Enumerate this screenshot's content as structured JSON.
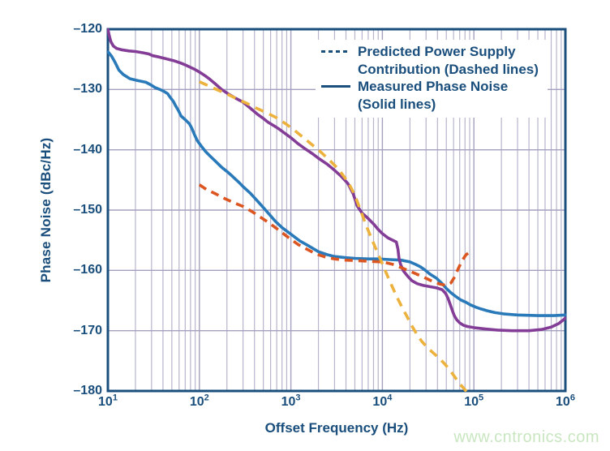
{
  "chart": {
    "ylabel": "Phase Noise (dBc/Hz)",
    "xlabel": "Offset Frequency (Hz)"
  },
  "legend": {
    "items": [
      {
        "style": "dashed",
        "line1": "Predicted Power Supply",
        "line2": "Contribution (Dashed lines)"
      },
      {
        "style": "solid",
        "line1": "Measured Phase Noise",
        "line2": "(Solid lines)"
      }
    ]
  },
  "watermark": "www.cntronics.com",
  "palette": {
    "navy": "#1a4e7c",
    "grid_minor": "#b6b5cc",
    "grid_major": "#a3a1bf",
    "watermark_green": "#c9e6c1"
  },
  "chart_data": {
    "type": "line",
    "title": "",
    "xlabel": "Offset Frequency (Hz)",
    "ylabel": "Phase Noise (dBc/Hz)",
    "x_scale": "log",
    "xlim": [
      10,
      1000000
    ],
    "ylim": [
      -180,
      -120
    ],
    "x_tick_exponents": [
      1,
      2,
      3,
      4,
      5,
      6
    ],
    "y_ticks": [
      -120,
      -130,
      -140,
      -150,
      -160,
      -170,
      -180
    ],
    "grid": true,
    "legend_position": "top-right-inside",
    "series": [
      {
        "name": "Measured Phase Noise (blue)",
        "role": "measured",
        "color": "#2a7aba",
        "line_style": "solid",
        "points": [
          [
            10.1,
            -123.8
          ],
          [
            11,
            -124.5
          ],
          [
            12,
            -125.5
          ],
          [
            13.2,
            -126.8
          ],
          [
            14.7,
            -127.5
          ],
          [
            17.4,
            -128.2
          ],
          [
            21,
            -128.5
          ],
          [
            26,
            -128.8
          ],
          [
            30,
            -129.3
          ],
          [
            33,
            -129.7
          ],
          [
            37,
            -130
          ],
          [
            41,
            -130.3
          ],
          [
            45,
            -130.7
          ],
          [
            48,
            -131.3
          ],
          [
            52,
            -132
          ],
          [
            55,
            -132.7
          ],
          [
            59,
            -133.5
          ],
          [
            63,
            -134.4
          ],
          [
            70,
            -135
          ],
          [
            78,
            -135.7
          ],
          [
            83,
            -136.5
          ],
          [
            89,
            -137.6
          ],
          [
            95,
            -138.5
          ],
          [
            105,
            -139.4
          ],
          [
            117,
            -140.3
          ],
          [
            130,
            -141
          ],
          [
            150,
            -141.9
          ],
          [
            175,
            -142.9
          ],
          [
            200,
            -143.6
          ],
          [
            230,
            -144.4
          ],
          [
            270,
            -145.4
          ],
          [
            300,
            -146.1
          ],
          [
            360,
            -147.2
          ],
          [
            450,
            -148.8
          ],
          [
            550,
            -150.3
          ],
          [
            680,
            -151.9
          ],
          [
            800,
            -152.9
          ],
          [
            1000,
            -154
          ],
          [
            1250,
            -155.1
          ],
          [
            1550,
            -155.9
          ],
          [
            2000,
            -156.9
          ],
          [
            2500,
            -157.4
          ],
          [
            3000,
            -157.7
          ],
          [
            4000,
            -157.9
          ],
          [
            5000,
            -158
          ],
          [
            7000,
            -158.1
          ],
          [
            9000,
            -158.1
          ],
          [
            12000,
            -158.2
          ],
          [
            16000,
            -158.3
          ],
          [
            20000,
            -158.6
          ],
          [
            23000,
            -159
          ],
          [
            26000,
            -159.4
          ],
          [
            29000,
            -159.9
          ],
          [
            33000,
            -160.6
          ],
          [
            39000,
            -161.3
          ],
          [
            45000,
            -162.2
          ],
          [
            50000,
            -163
          ],
          [
            56000,
            -163.7
          ],
          [
            63000,
            -164.3
          ],
          [
            72000,
            -164.9
          ],
          [
            82000,
            -165.3
          ],
          [
            91000,
            -165.7
          ],
          [
            105000,
            -166.1
          ],
          [
            120000,
            -166.4
          ],
          [
            140000,
            -166.7
          ],
          [
            170000,
            -167
          ],
          [
            210000,
            -167.2
          ],
          [
            300000,
            -167.4
          ],
          [
            500000,
            -167.5
          ],
          [
            750000,
            -167.5
          ],
          [
            1000000,
            -167.4
          ]
        ]
      },
      {
        "name": "Measured Phase Noise (purple)",
        "role": "measured",
        "color": "#843d96",
        "line_style": "solid",
        "points": [
          [
            10,
            -120
          ],
          [
            10.4,
            -121.2
          ],
          [
            10.8,
            -122.1
          ],
          [
            11.5,
            -122.8
          ],
          [
            12.5,
            -123.2
          ],
          [
            14,
            -123.4
          ],
          [
            17,
            -123.6
          ],
          [
            20,
            -123.7
          ],
          [
            24,
            -123.9
          ],
          [
            28,
            -124.1
          ],
          [
            31,
            -124.4
          ],
          [
            36,
            -124.6
          ],
          [
            43,
            -124.9
          ],
          [
            52,
            -125.2
          ],
          [
            62,
            -125.6
          ],
          [
            72,
            -126
          ],
          [
            82,
            -126.4
          ],
          [
            90,
            -126.7
          ],
          [
            100,
            -127.1
          ],
          [
            115,
            -127.7
          ],
          [
            130,
            -128.3
          ],
          [
            150,
            -129.1
          ],
          [
            175,
            -130
          ],
          [
            205,
            -130.7
          ],
          [
            245,
            -131.4
          ],
          [
            300,
            -132.1
          ],
          [
            360,
            -133.1
          ],
          [
            430,
            -134.1
          ],
          [
            500,
            -134.8
          ],
          [
            560,
            -135.4
          ],
          [
            650,
            -136
          ],
          [
            750,
            -136.6
          ],
          [
            850,
            -137.2
          ],
          [
            1000,
            -138
          ],
          [
            1200,
            -139
          ],
          [
            1450,
            -139.9
          ],
          [
            1700,
            -140.6
          ],
          [
            2000,
            -141.4
          ],
          [
            2500,
            -142.4
          ],
          [
            3000,
            -143.4
          ],
          [
            3600,
            -144.5
          ],
          [
            4200,
            -145.6
          ],
          [
            4800,
            -147.3
          ],
          [
            5300,
            -149.3
          ],
          [
            6000,
            -150.5
          ],
          [
            7000,
            -151.4
          ],
          [
            8000,
            -152.3
          ],
          [
            9000,
            -153.2
          ],
          [
            10000,
            -153.9
          ],
          [
            11500,
            -154.6
          ],
          [
            13000,
            -155
          ],
          [
            14200,
            -155.3
          ],
          [
            14800,
            -156.5
          ],
          [
            15200,
            -158
          ],
          [
            15800,
            -159
          ],
          [
            17000,
            -160.1
          ],
          [
            19000,
            -161
          ],
          [
            21000,
            -161.7
          ],
          [
            24000,
            -162.2
          ],
          [
            28000,
            -162.5
          ],
          [
            33000,
            -162.7
          ],
          [
            39000,
            -162.9
          ],
          [
            45000,
            -163.2
          ],
          [
            49000,
            -163.8
          ],
          [
            52000,
            -164.6
          ],
          [
            55000,
            -165.6
          ],
          [
            58000,
            -166.6
          ],
          [
            61000,
            -167.5
          ],
          [
            65000,
            -168.2
          ],
          [
            70000,
            -168.7
          ],
          [
            77000,
            -169.1
          ],
          [
            85000,
            -169.3
          ],
          [
            100000,
            -169.5
          ],
          [
            130000,
            -169.7
          ],
          [
            180000,
            -169.9
          ],
          [
            260000,
            -170
          ],
          [
            400000,
            -170
          ],
          [
            550000,
            -169.8
          ],
          [
            700000,
            -169.4
          ],
          [
            850000,
            -168.8
          ],
          [
            950000,
            -168.2
          ],
          [
            1000000,
            -167.9
          ]
        ]
      },
      {
        "name": "Predicted Power Supply Contribution (orange)",
        "role": "predicted",
        "color": "#dc5622",
        "line_style": "dashed",
        "dash": [
          10,
          7
        ],
        "points": [
          [
            100,
            -145.8
          ],
          [
            120,
            -146.6
          ],
          [
            150,
            -147.3
          ],
          [
            190,
            -148.1
          ],
          [
            240,
            -148.8
          ],
          [
            300,
            -149.4
          ],
          [
            380,
            -150.3
          ],
          [
            480,
            -151.3
          ],
          [
            600,
            -152.3
          ],
          [
            750,
            -153.4
          ],
          [
            950,
            -154.6
          ],
          [
            1200,
            -155.7
          ],
          [
            1500,
            -156.5
          ],
          [
            1900,
            -157.3
          ],
          [
            2400,
            -157.8
          ],
          [
            3000,
            -158.1
          ],
          [
            4000,
            -158.3
          ],
          [
            5500,
            -158.4
          ],
          [
            7500,
            -158.5
          ],
          [
            10000,
            -158.6
          ],
          [
            13000,
            -159
          ],
          [
            17000,
            -159.7
          ],
          [
            22000,
            -160.4
          ],
          [
            28000,
            -161.1
          ],
          [
            35000,
            -161.8
          ],
          [
            43000,
            -162.3
          ],
          [
            50000,
            -162.5
          ],
          [
            56000,
            -162.1
          ],
          [
            62000,
            -161
          ],
          [
            68000,
            -159.6
          ],
          [
            75000,
            -158.3
          ],
          [
            82000,
            -157.4
          ],
          [
            90000,
            -157
          ],
          [
            97000,
            -156.8
          ]
        ]
      },
      {
        "name": "Predicted Power Supply Contribution (yellow)",
        "role": "predicted",
        "color": "#ecb23d",
        "line_style": "dashed",
        "dash": [
          11,
          8
        ],
        "points": [
          [
            100,
            -128.7
          ],
          [
            130,
            -129.5
          ],
          [
            165,
            -130.2
          ],
          [
            210,
            -130.9
          ],
          [
            270,
            -131.7
          ],
          [
            330,
            -132.3
          ],
          [
            420,
            -133.1
          ],
          [
            550,
            -133.9
          ],
          [
            700,
            -134.7
          ],
          [
            900,
            -135.8
          ],
          [
            1100,
            -136.8
          ],
          [
            1400,
            -138.1
          ],
          [
            1750,
            -139.3
          ],
          [
            2100,
            -140.3
          ],
          [
            2600,
            -141.6
          ],
          [
            3300,
            -143.2
          ],
          [
            4200,
            -145.3
          ],
          [
            5000,
            -147.5
          ],
          [
            5600,
            -149.5
          ],
          [
            6300,
            -151.6
          ],
          [
            7100,
            -153.6
          ],
          [
            8000,
            -155.5
          ],
          [
            9000,
            -157.3
          ],
          [
            10000,
            -158.9
          ],
          [
            11200,
            -160.7
          ],
          [
            12800,
            -162.7
          ],
          [
            14500,
            -164.5
          ],
          [
            16400,
            -166.1
          ],
          [
            18500,
            -167.6
          ],
          [
            21000,
            -169.2
          ],
          [
            24000,
            -170.7
          ],
          [
            27000,
            -171.8
          ],
          [
            31000,
            -172.8
          ],
          [
            36000,
            -173.7
          ],
          [
            42000,
            -174.6
          ],
          [
            48000,
            -175.5
          ],
          [
            55000,
            -176.6
          ],
          [
            62000,
            -177.7
          ],
          [
            70000,
            -178.8
          ],
          [
            78000,
            -179.6
          ],
          [
            84000,
            -180.2
          ]
        ]
      }
    ]
  }
}
